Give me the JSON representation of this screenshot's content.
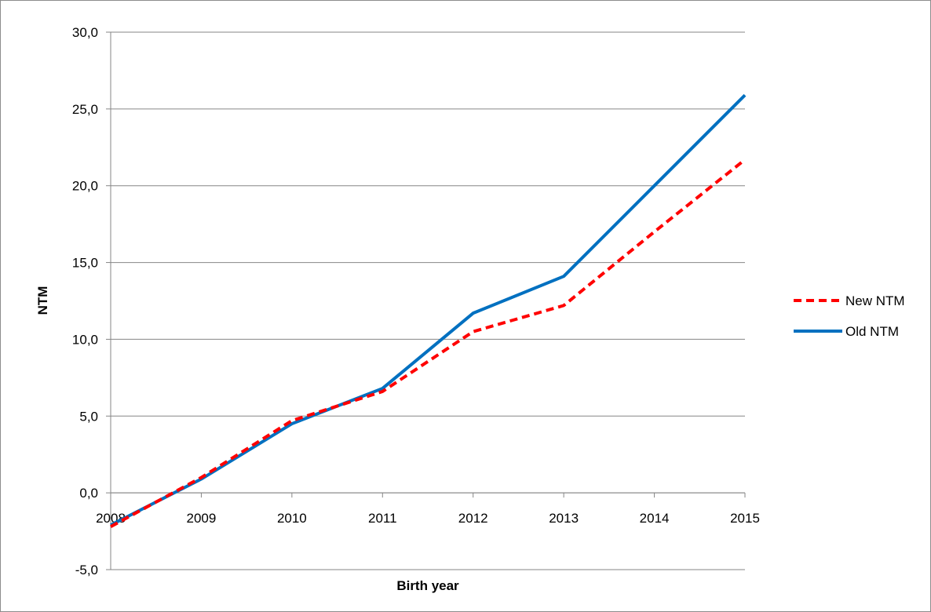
{
  "chart_data": {
    "type": "line",
    "title": "",
    "xlabel": "Birth year",
    "ylabel": "NTM",
    "x": [
      "2008",
      "2009",
      "2010",
      "2011",
      "2012",
      "2013",
      "2014",
      "2015"
    ],
    "ylim": [
      -5,
      30
    ],
    "yticks": [
      -5,
      0,
      5,
      10,
      15,
      20,
      25,
      30
    ],
    "ytick_labels": [
      "-5,0",
      "0,0",
      "5,0",
      "10,0",
      "15,0",
      "20,0",
      "25,0",
      "30,0"
    ],
    "grid": true,
    "legend_position": "right",
    "series": [
      {
        "name": "New NTM",
        "color": "#ff0000",
        "style": "dashed",
        "values": [
          -2.2,
          1.0,
          4.7,
          6.6,
          10.5,
          12.2,
          17.0,
          21.7
        ]
      },
      {
        "name": "Old NTM",
        "color": "#0070c0",
        "style": "solid",
        "values": [
          -2.1,
          0.9,
          4.5,
          6.8,
          11.7,
          14.1,
          20.0,
          25.9
        ]
      }
    ]
  }
}
